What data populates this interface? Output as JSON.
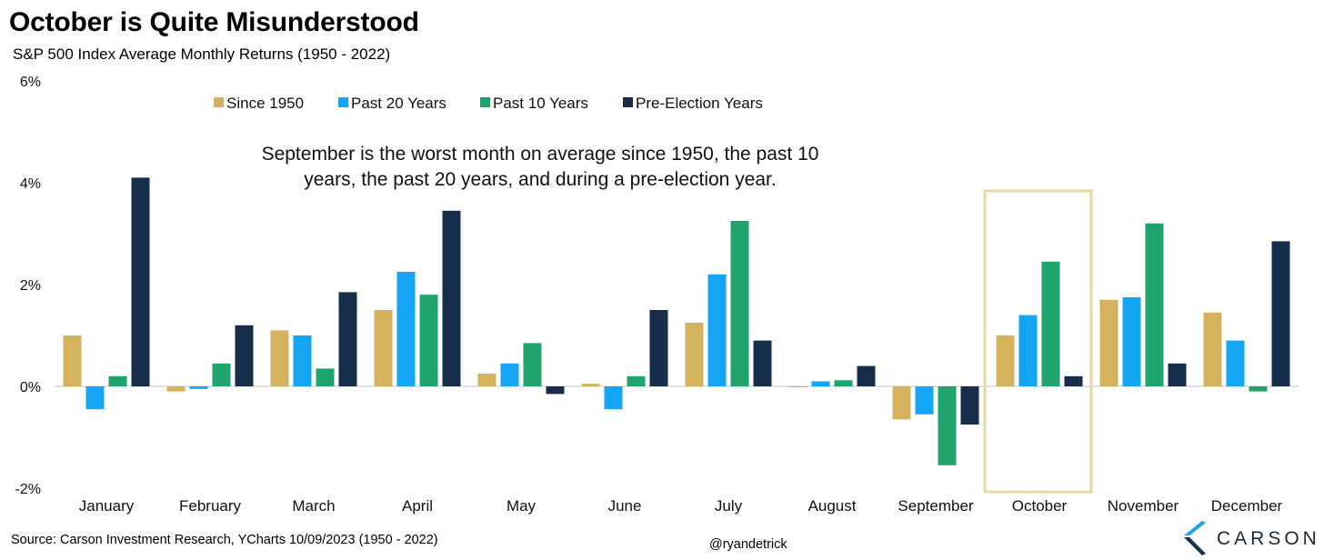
{
  "header": {
    "title": "October is Quite Misunderstood",
    "subtitle": "S&P 500 Index Average Monthly Returns (1950 - 2022)"
  },
  "annotation": {
    "line1": "September is the worst month on average since 1950, the past 10",
    "line2": "years, the past 20 years, and during a pre-election year."
  },
  "footer": {
    "source": "Source: Carson Investment Research, YCharts 10/09/2023 (1950 - 2022)",
    "handle": "@ryandetrick",
    "logo_text": "CARSON",
    "logo_icon": "carson-chevron-logo"
  },
  "chart_data": {
    "type": "bar",
    "title": "October is Quite Misunderstood",
    "subtitle": "S&P 500 Index Average Monthly Returns (1950 - 2022)",
    "categories": [
      "January",
      "February",
      "March",
      "April",
      "May",
      "June",
      "July",
      "August",
      "September",
      "October",
      "November",
      "December"
    ],
    "series": [
      {
        "name": "Since 1950",
        "color": "#D4B25E",
        "values": [
          1.0,
          -0.1,
          1.1,
          1.5,
          0.25,
          0.05,
          1.25,
          0.0,
          -0.65,
          1.0,
          1.7,
          1.45
        ]
      },
      {
        "name": "Past 20 Years",
        "color": "#14A6F5",
        "values": [
          -0.45,
          -0.05,
          1.0,
          2.25,
          0.45,
          -0.45,
          2.2,
          0.1,
          -0.55,
          1.4,
          1.75,
          0.9
        ]
      },
      {
        "name": "Past 10 Years",
        "color": "#20A46D",
        "values": [
          0.2,
          0.45,
          0.35,
          1.8,
          0.85,
          0.2,
          3.25,
          0.12,
          -1.55,
          2.45,
          3.2,
          -0.1
        ]
      },
      {
        "name": "Pre-Election Years",
        "color": "#162E4B",
        "values": [
          4.1,
          1.2,
          1.85,
          3.45,
          -0.15,
          1.5,
          0.9,
          0.4,
          -0.75,
          0.2,
          0.45,
          2.85
        ]
      }
    ],
    "ylim": [
      -2,
      6
    ],
    "yticks": [
      -2,
      0,
      2,
      4,
      6
    ],
    "ytick_labels": [
      "-2%",
      "0%",
      "2%",
      "4%",
      "6%"
    ],
    "xlabel": "",
    "ylabel": "",
    "legend": "top-center",
    "grid": false,
    "highlight_category": "October",
    "highlight_color": "#E8D8A0"
  }
}
